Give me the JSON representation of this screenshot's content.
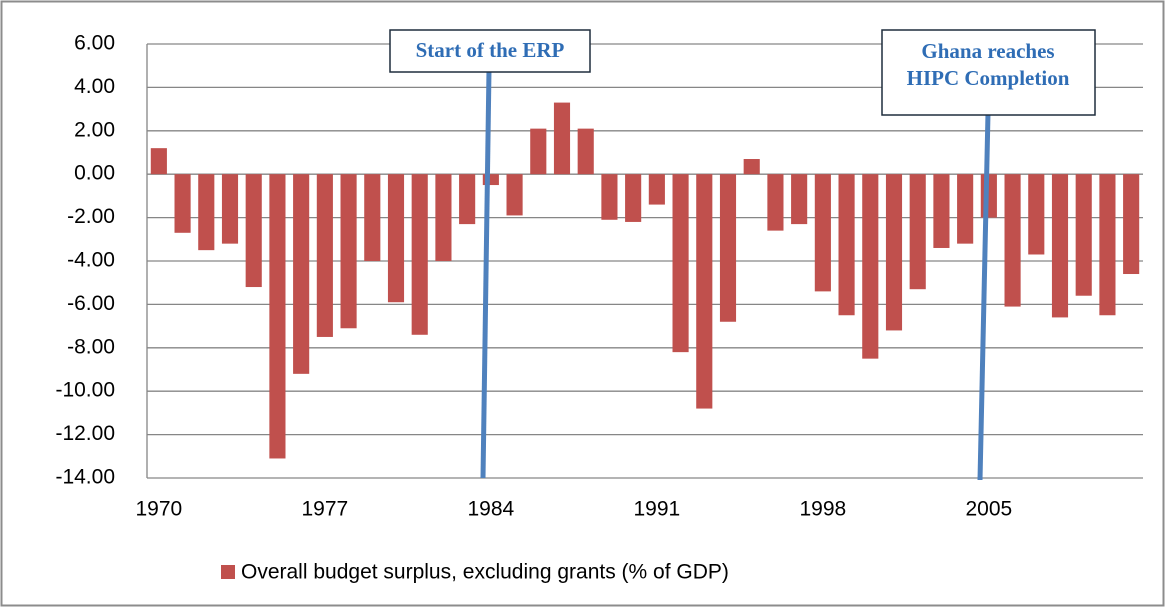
{
  "chart_data": {
    "type": "bar",
    "categories": [
      "1970",
      null,
      null,
      null,
      null,
      null,
      null,
      "1977",
      null,
      null,
      null,
      null,
      null,
      null,
      "1984",
      null,
      null,
      null,
      null,
      null,
      null,
      "1991",
      null,
      null,
      null,
      null,
      null,
      null,
      "1998",
      null,
      null,
      null,
      null,
      null,
      null,
      "2005",
      null,
      null,
      null,
      null,
      null,
      null
    ],
    "series": [
      {
        "name": "Overall budget surplus, excluding grants (% of GDP)",
        "color": "#c0504d",
        "values": [
          1.2,
          -2.7,
          -3.5,
          -3.2,
          -5.2,
          -13.1,
          -9.2,
          -7.5,
          -7.1,
          -4.0,
          -5.9,
          -7.4,
          -4.0,
          -2.3,
          -0.5,
          -1.9,
          2.1,
          3.3,
          2.1,
          -2.1,
          -2.2,
          -1.4,
          -8.2,
          -10.8,
          -6.8,
          0.7,
          -2.6,
          -2.3,
          -5.4,
          -6.5,
          -8.5,
          -7.2,
          -5.3,
          -3.4,
          -3.2,
          -2.0,
          -6.1,
          -3.7,
          -6.6,
          -5.6,
          -6.5,
          -4.6
        ]
      }
    ],
    "ylim": [
      -14,
      6
    ],
    "yticks": [
      {
        "value": -14,
        "label": "-14.00"
      },
      {
        "value": -12,
        "label": "-12.00"
      },
      {
        "value": -10,
        "label": "-10.00"
      },
      {
        "value": -8,
        "label": "-8.00"
      },
      {
        "value": -6,
        "label": "-6.00"
      },
      {
        "value": -4,
        "label": "-4.00"
      },
      {
        "value": -2,
        "label": "-2.00"
      },
      {
        "value": 0,
        "label": "0.00"
      },
      {
        "value": 2,
        "label": "2.00"
      },
      {
        "value": 4,
        "label": "4.00"
      },
      {
        "value": 6,
        "label": "6.00"
      }
    ],
    "grid": true,
    "legend": "bottom",
    "annotations": [
      "Start of the ERP",
      "Ghana reaches",
      "HIPC Completion"
    ]
  }
}
